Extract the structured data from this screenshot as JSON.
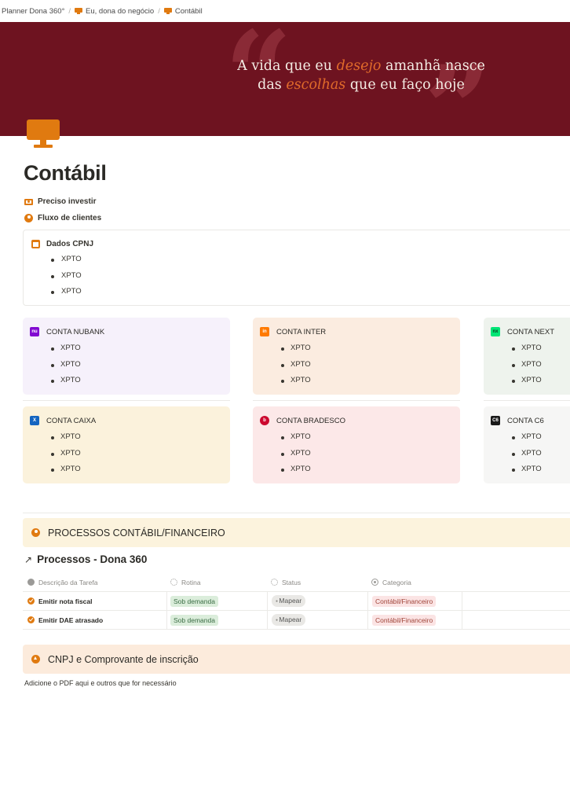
{
  "breadcrumb": [
    "Planner Dona 360°",
    "Eu, dona do negócio",
    "Contábil"
  ],
  "banner": {
    "quote_line1_a": "A vida que eu ",
    "quote_line1_hl": "desejo",
    "quote_line1_b": " amanhã nasce",
    "quote_line2_a": "das ",
    "quote_line2_hl": "escolhas",
    "quote_line2_b": " que eu faço hoje",
    "bg_color": "#6e1320",
    "accent_color": "#e06a2a"
  },
  "page": {
    "title": "Contábil",
    "icon": "monitor-icon"
  },
  "links": [
    {
      "label": "Preciso investir",
      "icon": "money-icon"
    },
    {
      "label": "Fluxo de clientes",
      "icon": "user-icon"
    }
  ],
  "cnpj_box": {
    "title": "Dados CPNJ",
    "items": [
      "XPTO",
      "XPTO",
      "XPTO"
    ]
  },
  "banks": [
    {
      "name": "CONTA NUBANK",
      "items": [
        "XPTO",
        "XPTO",
        "XPTO"
      ],
      "bg": "#f6f1fb",
      "icon_color": "#820ad1",
      "icon_text": "nu"
    },
    {
      "name": "CONTA INTER",
      "items": [
        "XPTO",
        "XPTO",
        "XPTO"
      ],
      "bg": "#fbece0",
      "icon_color": "#ff7a00",
      "icon_text": "in"
    },
    {
      "name": "CONTA NEXT",
      "items": [
        "XPTO",
        "XPTO",
        "XPTO"
      ],
      "bg": "#eef3ed",
      "icon_color": "#00e676",
      "icon_text": "nx"
    },
    {
      "name": "CONTA CAIXA",
      "items": [
        "XPTO",
        "XPTO",
        "XPTO"
      ],
      "bg": "#fbf2dc",
      "icon_color": "#1565c0",
      "icon_text": "X"
    },
    {
      "name": "CONTA BRADESCO",
      "items": [
        "XPTO",
        "XPTO",
        "XPTO"
      ],
      "bg": "#fce8e8",
      "icon_color": "#cc092f",
      "icon_text": "b"
    },
    {
      "name": "CONTA C6",
      "items": [
        "XPTO",
        "XPTO",
        "XPTO"
      ],
      "bg": "#f6f6f5",
      "icon_color": "#1a1a1a",
      "icon_text": "C6"
    }
  ],
  "processos_callout": {
    "title": "PROCESSOS CONTÁBIL/FINANCEIRO"
  },
  "database": {
    "title": "Processos - Dona 360",
    "columns": [
      "Descrição da Tarefa",
      "Rotina",
      "Status",
      "Categoria"
    ],
    "rows": [
      {
        "task": "Emitir nota fiscal",
        "rotina": "Sob demanda",
        "status": "Mapear",
        "categoria": "Contábil/Financeiro"
      },
      {
        "task": "Emitir DAE atrasado",
        "rotina": "Sob demanda",
        "status": "Mapear",
        "categoria": "Contábil/Financeiro"
      }
    ]
  },
  "cnpj_callout": {
    "title": "CNPJ e Comprovante de inscrição"
  },
  "note": "Adicione o PDF aqui e outros que for necessário"
}
